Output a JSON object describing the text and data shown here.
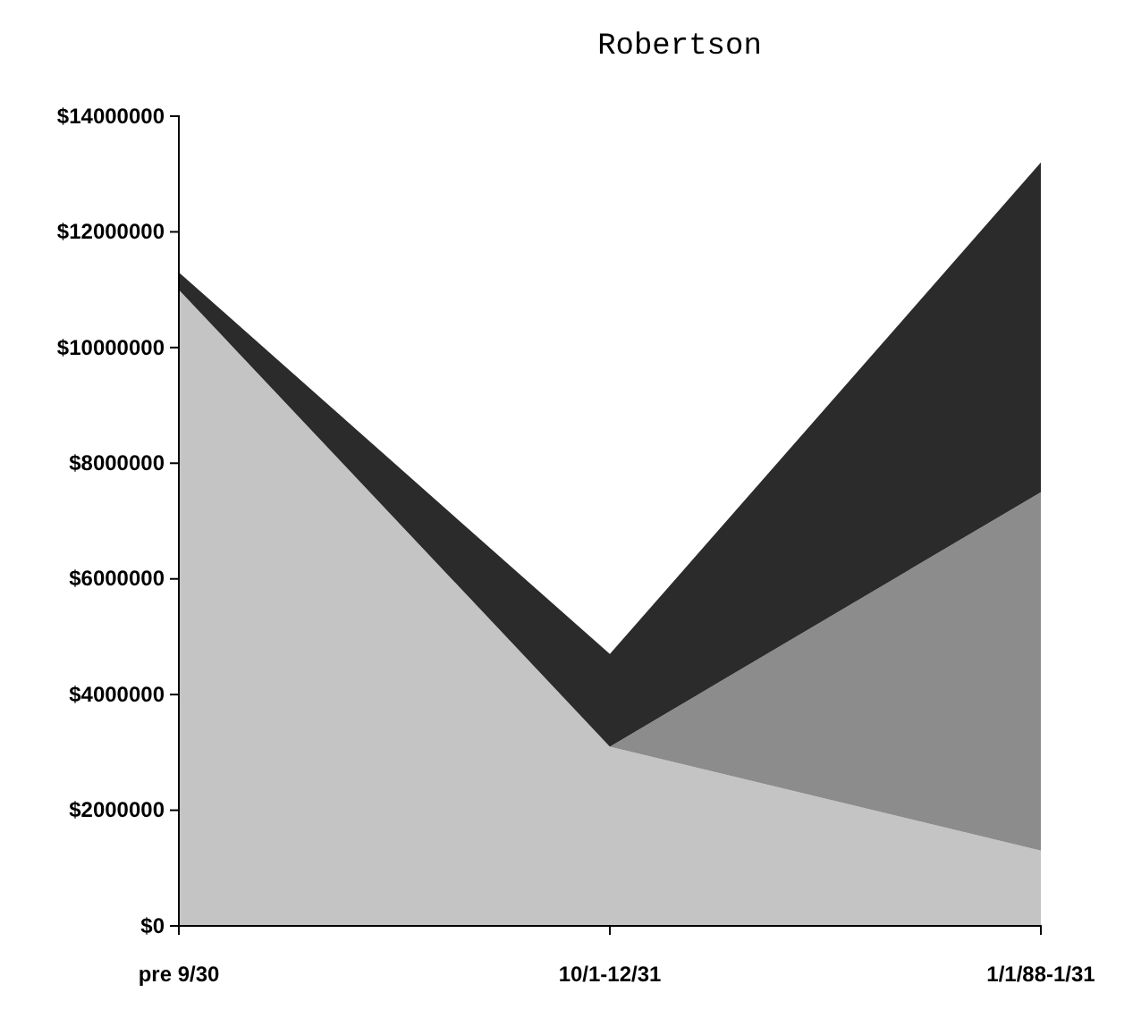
{
  "chart_data": {
    "type": "area",
    "title": "Robertson",
    "stacked": true,
    "categories": [
      "pre 9/30",
      "10/1-12/31",
      "1/1/88-1/31"
    ],
    "series": [
      {
        "color": "#c4c4c4",
        "values": [
          11000000,
          3100000,
          1300000
        ]
      },
      {
        "color": "#8c8c8c",
        "values": [
          0,
          0,
          6200000
        ]
      },
      {
        "color": "#2b2b2b",
        "values": [
          300000,
          1600000,
          5700000
        ]
      }
    ],
    "ylim": [
      0,
      14000000
    ],
    "yticks": [
      {
        "value": 0,
        "label": "$0"
      },
      {
        "value": 2000000,
        "label": "$2000000"
      },
      {
        "value": 4000000,
        "label": "$4000000"
      },
      {
        "value": 6000000,
        "label": "$6000000"
      },
      {
        "value": 8000000,
        "label": "$8000000"
      },
      {
        "value": 10000000,
        "label": "$10000000"
      },
      {
        "value": 12000000,
        "label": "$12000000"
      },
      {
        "value": 14000000,
        "label": "$14000000"
      }
    ],
    "grid": false
  }
}
